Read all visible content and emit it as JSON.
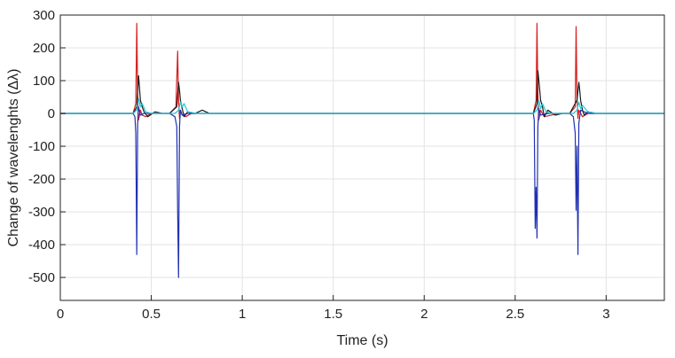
{
  "chart_data": {
    "type": "line",
    "title": "",
    "xlabel": "Time (s)",
    "ylabel": "Change of wavelenghts (Δλ)",
    "xlim": [
      0,
      3.32
    ],
    "ylim": [
      -570,
      300
    ],
    "x_ticks": [
      0,
      0.5,
      1,
      1.5,
      2,
      2.5,
      3
    ],
    "x_tick_labels": [
      "0",
      "0.5",
      "1",
      "1.5",
      "2",
      "2.5",
      "3"
    ],
    "y_ticks": [
      -500,
      -400,
      -300,
      -200,
      -100,
      0,
      100,
      200,
      300
    ],
    "y_tick_labels": [
      "-500",
      "-400",
      "-300",
      "-200",
      "-100",
      "0",
      "100",
      "200",
      "300"
    ],
    "grid": true,
    "legend": "none",
    "series": [
      {
        "color": "#d62020",
        "x": [
          0,
          0.4,
          0.415,
          0.42,
          0.425,
          0.43,
          0.44,
          0.45,
          0.47,
          0.5,
          0.55,
          0.6,
          0.635,
          0.645,
          0.65,
          0.655,
          0.66,
          0.67,
          0.69,
          0.72,
          0.76,
          0.8,
          2.57,
          2.6,
          2.615,
          2.62,
          2.625,
          2.63,
          2.64,
          2.66,
          2.7,
          2.74,
          2.8,
          2.83,
          2.835,
          2.84,
          2.845,
          2.85,
          2.87,
          2.9,
          2.95,
          3.32
        ],
        "y": [
          0,
          0,
          30,
          275,
          60,
          -20,
          10,
          -5,
          -10,
          0,
          0,
          0,
          20,
          190,
          40,
          -15,
          10,
          -5,
          -10,
          0,
          0,
          0,
          0,
          0,
          40,
          275,
          60,
          -20,
          10,
          -10,
          -5,
          0,
          0,
          20,
          265,
          50,
          -15,
          10,
          -10,
          0,
          0,
          0
        ]
      },
      {
        "color": "#1a1a1a",
        "x": [
          0,
          0.4,
          0.42,
          0.425,
          0.43,
          0.435,
          0.44,
          0.45,
          0.46,
          0.48,
          0.52,
          0.56,
          0.6,
          0.64,
          0.65,
          0.655,
          0.66,
          0.67,
          0.68,
          0.7,
          0.74,
          0.78,
          0.8,
          0.82,
          2.57,
          2.6,
          2.62,
          2.625,
          2.63,
          2.635,
          2.64,
          2.65,
          2.66,
          2.68,
          2.72,
          2.76,
          2.8,
          2.82,
          2.84,
          2.85,
          2.855,
          2.86,
          2.87,
          2.88,
          2.9,
          2.95,
          3.32
        ],
        "y": [
          0,
          0,
          20,
          70,
          115,
          80,
          40,
          20,
          5,
          -10,
          5,
          0,
          0,
          20,
          95,
          70,
          40,
          15,
          -10,
          5,
          0,
          10,
          5,
          0,
          0,
          0,
          30,
          130,
          100,
          70,
          40,
          20,
          -10,
          10,
          -5,
          0,
          0,
          20,
          40,
          95,
          70,
          40,
          10,
          -5,
          5,
          0,
          0
        ]
      },
      {
        "color": "#2030b0",
        "x": [
          0,
          0.4,
          0.41,
          0.415,
          0.42,
          0.425,
          0.43,
          0.44,
          0.46,
          0.5,
          0.6,
          0.63,
          0.64,
          0.645,
          0.65,
          0.655,
          0.66,
          0.67,
          0.7,
          0.8,
          2.57,
          2.6,
          2.605,
          2.61,
          2.615,
          2.62,
          2.625,
          2.63,
          2.64,
          2.68,
          2.8,
          2.82,
          2.83,
          2.835,
          2.84,
          2.845,
          2.85,
          2.86,
          2.9,
          3.32
        ],
        "y": [
          0,
          0,
          -10,
          -60,
          -430,
          -30,
          20,
          -5,
          0,
          0,
          0,
          -10,
          -40,
          -300,
          -500,
          -40,
          10,
          -5,
          0,
          0,
          0,
          0,
          -20,
          -350,
          -225,
          -380,
          -40,
          15,
          -5,
          0,
          0,
          -10,
          -60,
          -295,
          -100,
          -430,
          -30,
          10,
          0,
          0
        ]
      },
      {
        "color": "#20c8d8",
        "x": [
          0,
          0.4,
          0.42,
          0.43,
          0.44,
          0.45,
          0.47,
          0.5,
          0.63,
          0.65,
          0.66,
          0.67,
          0.68,
          0.7,
          0.75,
          2.57,
          2.6,
          2.62,
          2.63,
          2.64,
          2.65,
          2.67,
          2.7,
          2.82,
          2.84,
          2.85,
          2.86,
          2.87,
          2.9,
          2.95,
          3.32
        ],
        "y": [
          0,
          0,
          10,
          45,
          20,
          30,
          5,
          0,
          0,
          10,
          35,
          20,
          30,
          5,
          0,
          0,
          0,
          10,
          40,
          15,
          30,
          5,
          0,
          0,
          10,
          35,
          15,
          25,
          5,
          0,
          0
        ]
      }
    ]
  }
}
